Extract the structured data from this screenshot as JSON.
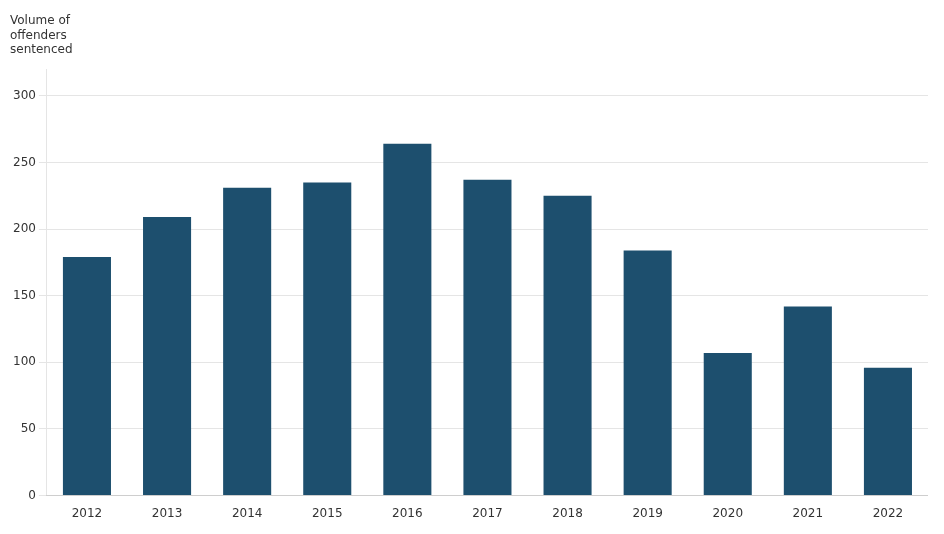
{
  "chart_data": {
    "type": "bar",
    "ylabel": "Volume of\noffenders\nsentenced",
    "categories": [
      "2012",
      "2013",
      "2014",
      "2015",
      "2016",
      "2017",
      "2018",
      "2019",
      "2020",
      "2021",
      "2022"
    ],
    "values": [
      179,
      209,
      231,
      235,
      264,
      237,
      225,
      184,
      107,
      142,
      96
    ],
    "color": "#1d4f6e",
    "ylim": [
      0,
      320
    ],
    "yticks": [
      0,
      50,
      100,
      150,
      200,
      250,
      300
    ],
    "grid": true
  }
}
